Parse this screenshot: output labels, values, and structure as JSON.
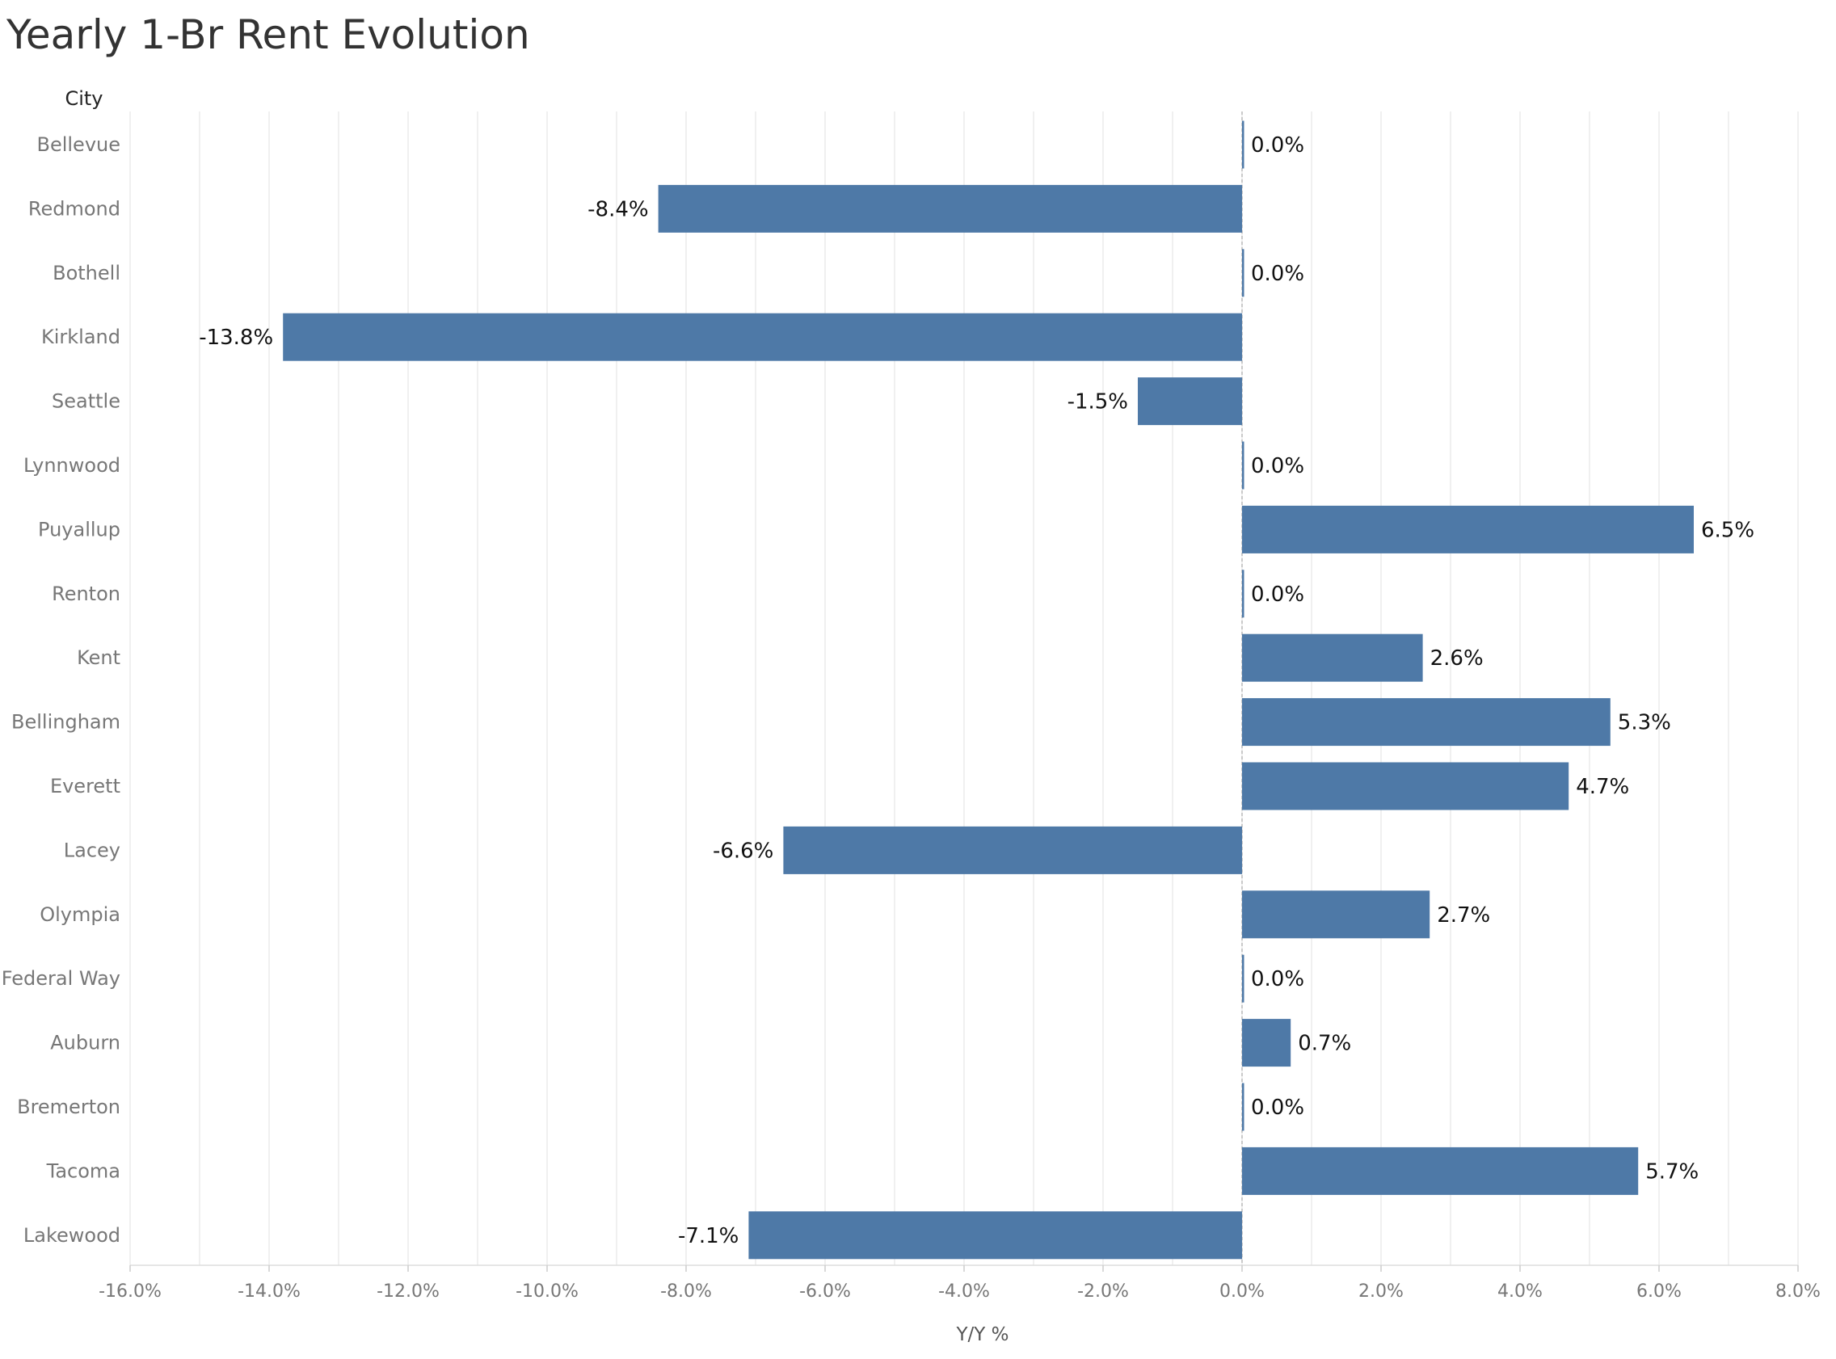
{
  "chart_data": {
    "type": "bar",
    "orientation": "horizontal",
    "title": "Yearly 1-Br Rent Evolution",
    "row_header": "City",
    "xlabel": "Y/Y %",
    "ylabel": "",
    "categories": [
      "Bellevue",
      "Redmond",
      "Bothell",
      "Kirkland",
      "Seattle",
      "Lynnwood",
      "Puyallup",
      "Renton",
      "Kent",
      "Bellingham",
      "Everett",
      "Lacey",
      "Olympia",
      "Federal Way",
      "Auburn",
      "Bremerton",
      "Tacoma",
      "Lakewood"
    ],
    "values": [
      0.0,
      -8.4,
      0.0,
      -13.8,
      -1.5,
      0.0,
      6.5,
      0.0,
      2.6,
      5.3,
      4.7,
      -6.6,
      2.7,
      0.0,
      0.7,
      0.0,
      5.7,
      -7.1
    ],
    "value_labels": [
      "0.0%",
      "-8.4%",
      "0.0%",
      "-13.8%",
      "-1.5%",
      "0.0%",
      "6.5%",
      "0.0%",
      "2.6%",
      "5.3%",
      "4.7%",
      "-6.6%",
      "2.7%",
      "0.0%",
      "0.7%",
      "0.0%",
      "5.7%",
      "-7.1%"
    ],
    "xlim": [
      -16.0,
      8.0
    ],
    "xticks": [
      -16.0,
      -14.0,
      -12.0,
      -10.0,
      -8.0,
      -6.0,
      -4.0,
      -2.0,
      0.0,
      2.0,
      4.0,
      6.0,
      8.0
    ],
    "xtick_labels": [
      "-16.0%",
      "-14.0%",
      "-12.0%",
      "-10.0%",
      "-8.0%",
      "-6.0%",
      "-4.0%",
      "-2.0%",
      "0.0%",
      "2.0%",
      "4.0%",
      "6.0%",
      "8.0%"
    ],
    "grid": true,
    "legend": "none",
    "colors": {
      "bar": "#4e79a7",
      "grid": "#ececec",
      "zero_line": "#bbbbbb"
    }
  }
}
